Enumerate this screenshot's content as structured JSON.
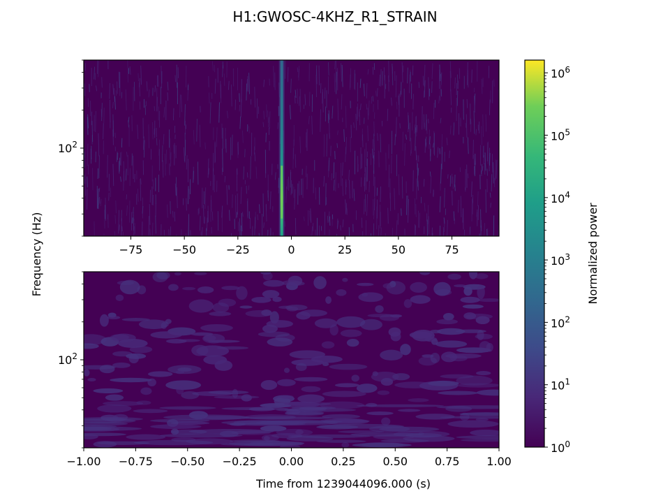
{
  "chart_data": {
    "type": "heatmap",
    "title": "H1:GWOSC-4KHZ_R1_STRAIN",
    "ylabel": "Frequency (Hz)",
    "xlabel": "Time from 1239044096.000 (s)",
    "colormap": "viridis",
    "colorbar": {
      "label": "Normalized power",
      "scale": "log",
      "range": [
        1,
        1600000
      ],
      "ticks": [
        {
          "value": 1,
          "base": "10",
          "exp": "0"
        },
        {
          "value": 10,
          "base": "10",
          "exp": "1"
        },
        {
          "value": 100,
          "base": "10",
          "exp": "2"
        },
        {
          "value": 1000,
          "base": "10",
          "exp": "3"
        },
        {
          "value": 10000,
          "base": "10",
          "exp": "4"
        },
        {
          "value": 100000,
          "base": "10",
          "exp": "5"
        },
        {
          "value": 1000000,
          "base": "10",
          "exp": "6"
        }
      ]
    },
    "panels": [
      {
        "name": "full-segment",
        "xlim": [
          -97,
          97
        ],
        "ylim": [
          20,
          500
        ],
        "yscale": "log",
        "xticks": [
          -75,
          -50,
          -25,
          0,
          25,
          50,
          75
        ],
        "xtick_labels": [
          "−75",
          "−50",
          "−25",
          "0",
          "25",
          "50",
          "75"
        ],
        "yticks": [
          {
            "value": 100,
            "base": "10",
            "exp": "2"
          }
        ],
        "features": [
          {
            "kind": "vertical-burst",
            "time": -4.5,
            "freq_range": [
              20,
              500
            ],
            "peak_power": 100000
          }
        ]
      },
      {
        "name": "zoom",
        "xlim": [
          -1,
          1
        ],
        "ylim": [
          20,
          500
        ],
        "yscale": "log",
        "xticks": [
          -1,
          -0.75,
          -0.5,
          -0.25,
          0,
          0.25,
          0.5,
          0.75,
          1
        ],
        "xtick_labels": [
          "−1.00",
          "−0.75",
          "−0.50",
          "−0.25",
          "0.00",
          "0.25",
          "0.50",
          "0.75",
          "1.00"
        ],
        "yticks": [
          {
            "value": 100,
            "base": "10",
            "exp": "2"
          }
        ],
        "features": []
      }
    ]
  }
}
